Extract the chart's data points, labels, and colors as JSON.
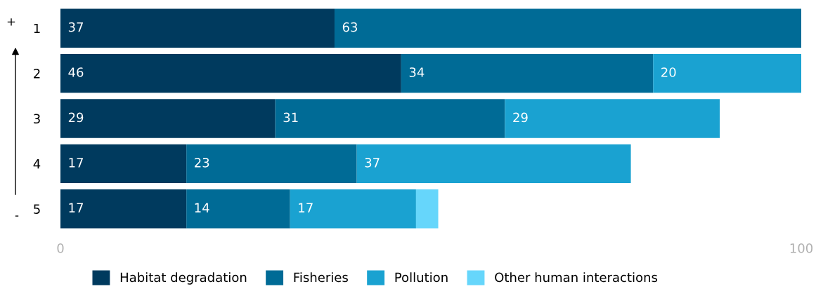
{
  "chart_data": {
    "type": "bar",
    "orientation": "horizontal",
    "stacked": true,
    "categories": [
      "1",
      "2",
      "3",
      "4",
      "5"
    ],
    "series": [
      {
        "name": "Habitat degradation",
        "color": "#003a5e",
        "values": [
          37,
          46,
          29,
          17,
          17
        ],
        "value_labels": [
          "37",
          "46",
          "29",
          "17",
          "17"
        ]
      },
      {
        "name": "Fisheries",
        "color": "#006b96",
        "values": [
          63,
          34,
          31,
          23,
          14
        ],
        "value_labels": [
          "63",
          "34",
          "31",
          "23",
          "14"
        ]
      },
      {
        "name": "Pollution",
        "color": "#1aa2d1",
        "values": [
          null,
          20,
          29,
          37,
          17
        ],
        "value_labels": [
          null,
          "20",
          "29",
          "37",
          "17"
        ]
      },
      {
        "name": "Other human interactions",
        "color": "#66d6fb",
        "values": [
          null,
          null,
          null,
          null,
          3
        ],
        "value_labels": [
          null,
          null,
          null,
          null,
          null
        ]
      }
    ],
    "xlim": [
      0,
      100
    ],
    "xticks": [
      0,
      100
    ],
    "grid": false,
    "legend": "bottom",
    "annotations": [
      "+",
      "-"
    ]
  }
}
